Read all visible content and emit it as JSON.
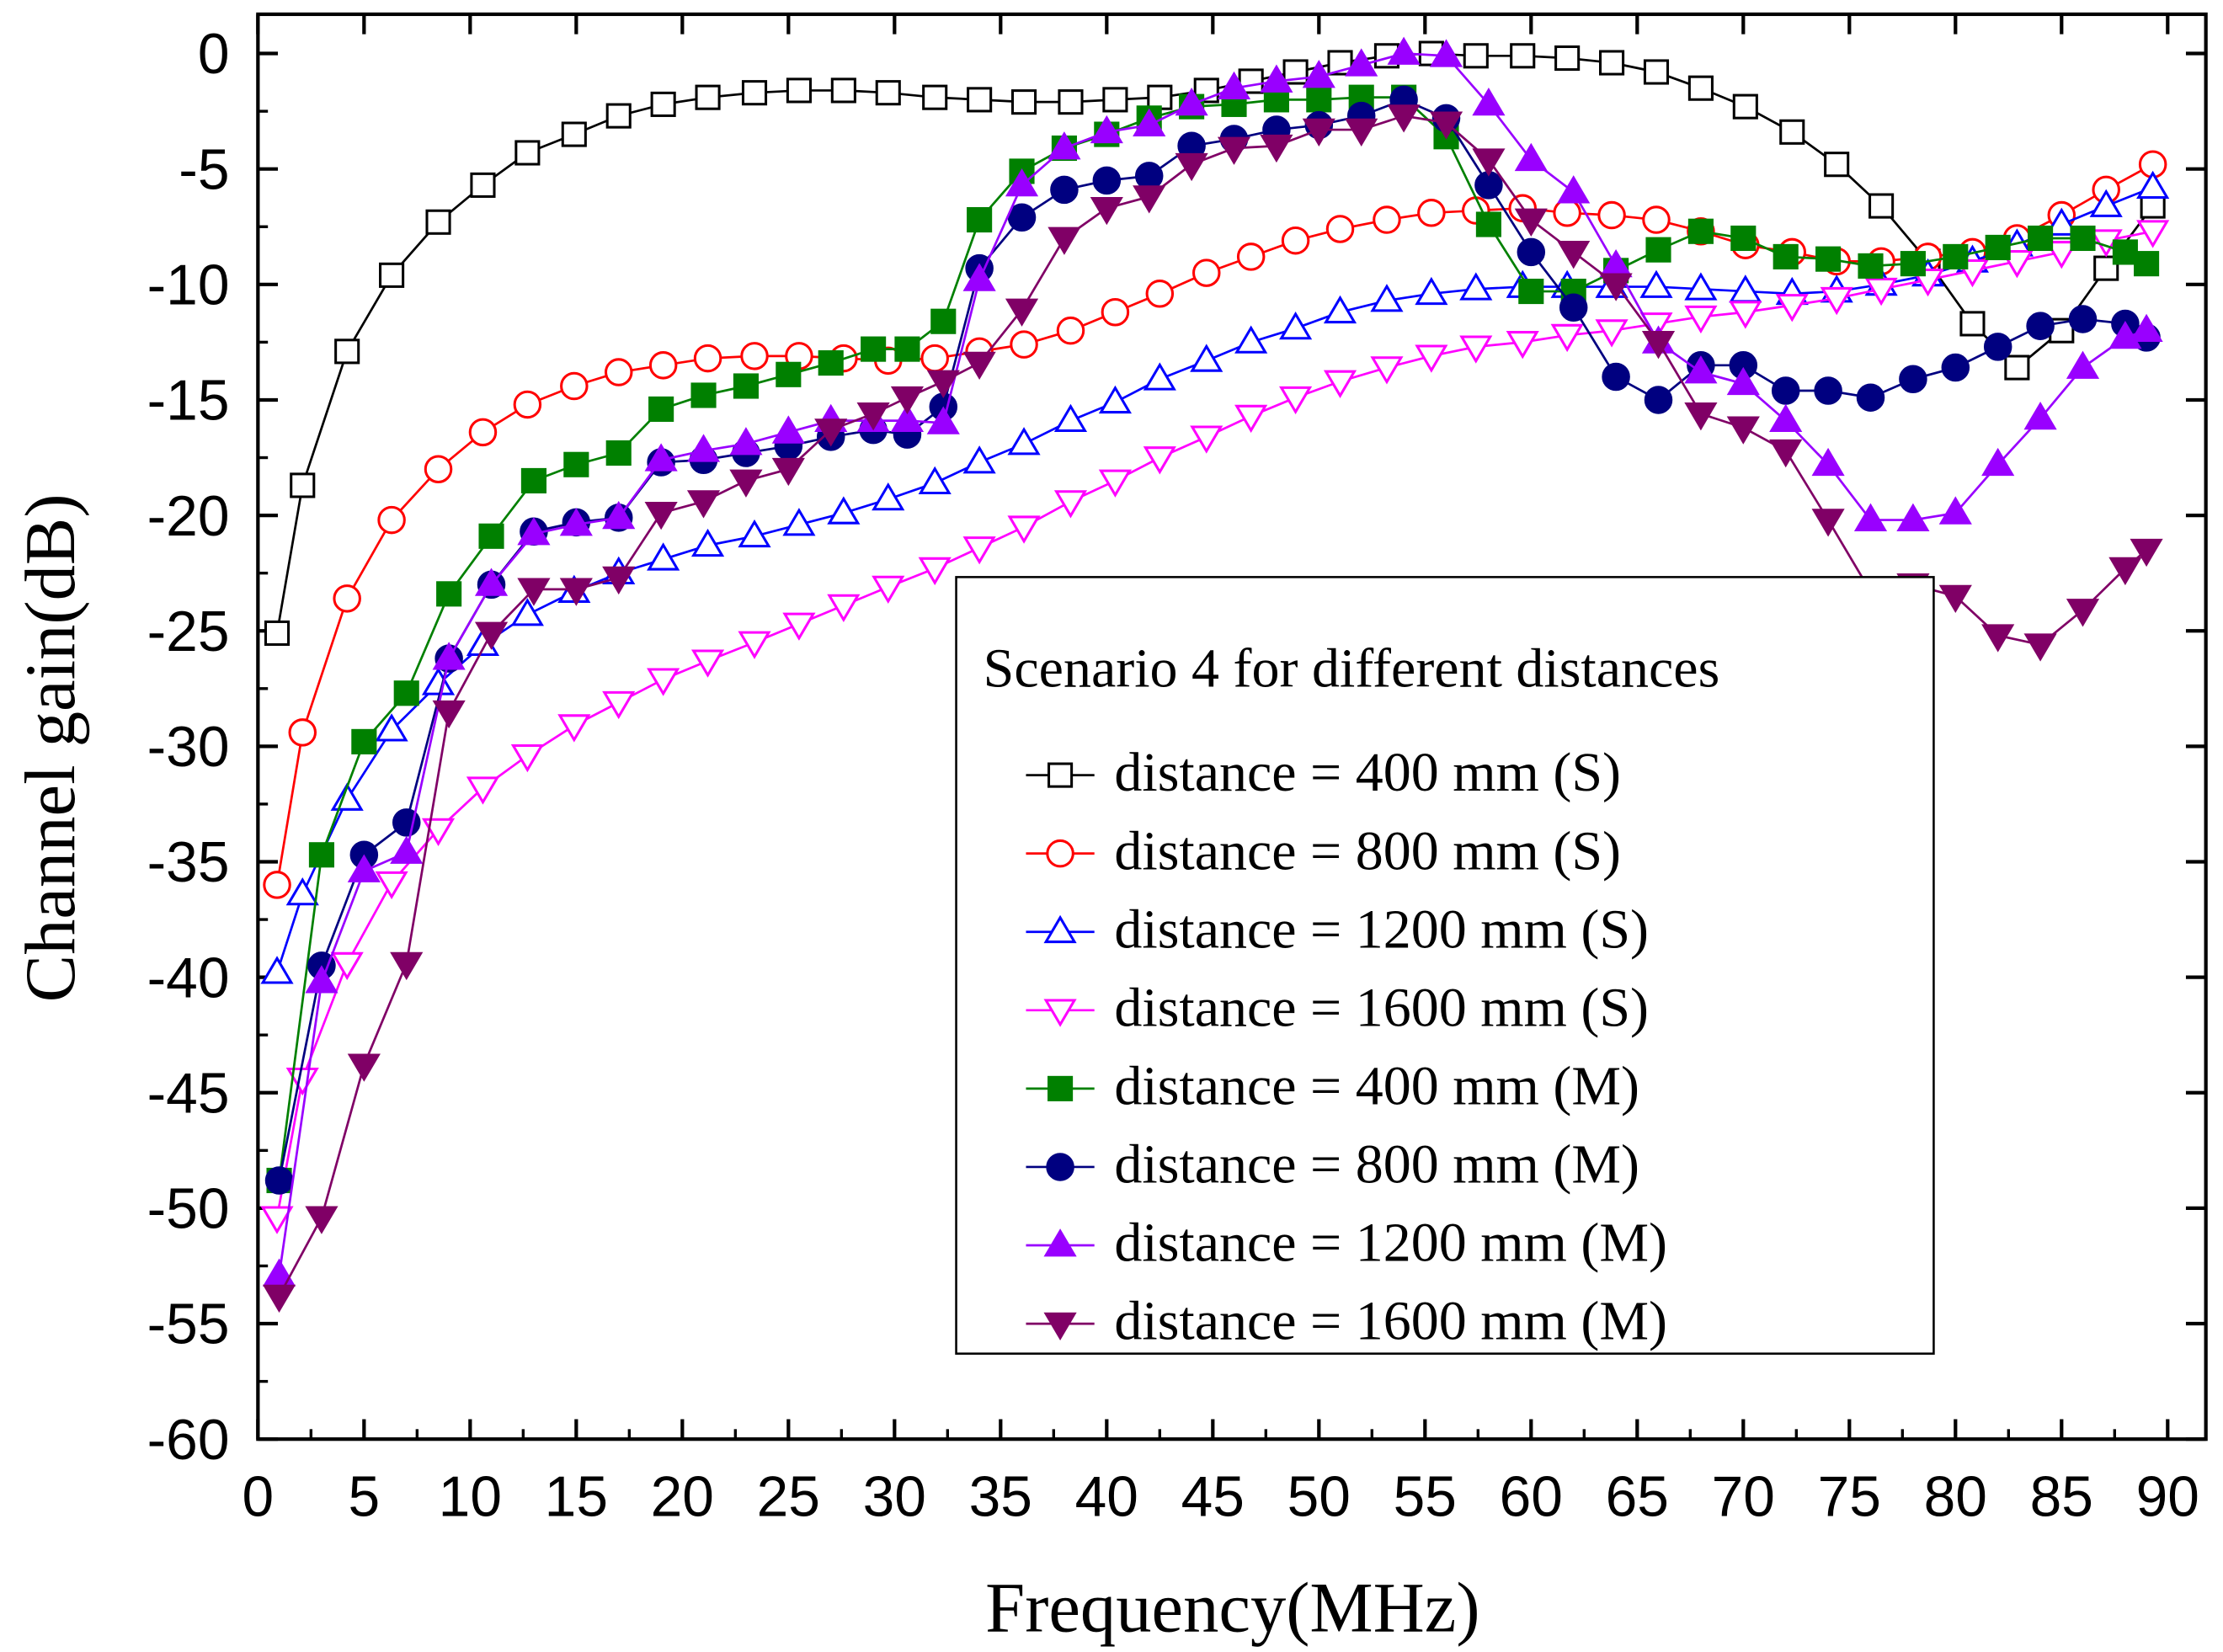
{
  "chart_data": {
    "type": "line",
    "title": "",
    "xlabel": "Frequency(MHz)",
    "ylabel": "Channel gain(dB)",
    "xlim": [
      0,
      91.8
    ],
    "ylim": [
      -60,
      1.7
    ],
    "x_ticks": [
      0,
      5,
      10,
      15,
      20,
      25,
      30,
      35,
      40,
      45,
      50,
      55,
      60,
      65,
      70,
      75,
      80,
      85,
      90
    ],
    "y_ticks": [
      0,
      -5,
      -10,
      -15,
      -20,
      -25,
      -30,
      -35,
      -40,
      -45,
      -50,
      -55,
      -60
    ],
    "grid": false,
    "legend": {
      "title": "Scenario 4 for different distances",
      "placement": "center-right"
    },
    "x_S": [
      0.9,
      2.1,
      4.2,
      6.3,
      8.5,
      10.6,
      12.7,
      14.9,
      17,
      19.1,
      21.2,
      23.4,
      25.5,
      27.6,
      29.7,
      31.9,
      34,
      36.1,
      38.3,
      40.4,
      42.5,
      44.7,
      46.8,
      48.9,
      51,
      53.2,
      55.3,
      57.4,
      59.6,
      61.7,
      63.8,
      65.9,
      68,
      70.1,
      72.3,
      74.4,
      76.5,
      78.7,
      80.8,
      82.9,
      85,
      87.1,
      89.3
    ],
    "x_M": [
      1,
      3,
      5,
      7,
      9,
      11,
      13,
      15,
      17,
      19,
      21,
      23,
      25,
      27,
      29,
      30.6,
      32.3,
      34,
      36,
      38,
      40,
      42,
      44,
      46,
      48,
      50,
      52,
      54,
      56,
      58,
      60,
      62,
      64,
      66,
      68,
      70,
      72,
      74,
      76,
      78,
      80,
      82,
      84,
      86,
      88,
      89
    ],
    "series": [
      {
        "name": "distance = 400 mm (S)",
        "xkey": "x_S",
        "color": "#000000",
        "marker": "square",
        "filled": false,
        "values": [
          -25.1,
          -18.7,
          -12.9,
          -9.6,
          -7.3,
          -5.7,
          -4.3,
          -3.5,
          -2.7,
          -2.2,
          -1.9,
          -1.7,
          -1.6,
          -1.6,
          -1.7,
          -1.9,
          -2,
          -2.1,
          -2.1,
          -2,
          -1.9,
          -1.6,
          -1.2,
          -0.8,
          -0.4,
          -0.1,
          0,
          -0.1,
          -0.1,
          -0.2,
          -0.4,
          -0.8,
          -1.5,
          -2.3,
          -3.4,
          -4.8,
          -6.6,
          -9,
          -11.7,
          -13.6,
          -12,
          -9.3,
          -6.6
        ]
      },
      {
        "name": "distance = 800 mm (S)",
        "xkey": "x_S",
        "color": "#ff0000",
        "marker": "circle",
        "filled": false,
        "values": [
          -36,
          -29.4,
          -23.6,
          -20.2,
          -18,
          -16.4,
          -15.2,
          -14.4,
          -13.8,
          -13.5,
          -13.2,
          -13.1,
          -13.1,
          -13.2,
          -13.3,
          -13.2,
          -12.9,
          -12.6,
          -12,
          -11.2,
          -10.4,
          -9.5,
          -8.8,
          -8.1,
          -7.6,
          -7.2,
          -6.9,
          -6.8,
          -6.7,
          -6.9,
          -7,
          -7.2,
          -7.7,
          -8.3,
          -8.6,
          -9,
          -9,
          -8.8,
          -8.6,
          -8,
          -7,
          -5.9,
          -4.8
        ]
      },
      {
        "name": "distance = 1200 mm (S)",
        "xkey": "x_S",
        "color": "#0000ff",
        "marker": "triangle-up",
        "filled": false,
        "values": [
          -39.8,
          -36.4,
          -32.3,
          -29.3,
          -27.3,
          -25.6,
          -24.3,
          -23.3,
          -22.5,
          -21.9,
          -21.3,
          -20.9,
          -20.4,
          -19.9,
          -19.3,
          -18.6,
          -17.7,
          -16.9,
          -15.9,
          -15.1,
          -14.1,
          -13.3,
          -12.5,
          -11.9,
          -11.2,
          -10.7,
          -10.4,
          -10.2,
          -10.1,
          -10.1,
          -10.1,
          -10.1,
          -10.2,
          -10.3,
          -10.4,
          -10.3,
          -10,
          -9.6,
          -9,
          -8.3,
          -7.4,
          -6.6,
          -5.8
        ]
      },
      {
        "name": "distance = 1600 mm (S)",
        "xkey": "x_S",
        "color": "#ff00ff",
        "marker": "triangle-down",
        "filled": false,
        "values": [
          -50.4,
          -44.4,
          -39.4,
          -35.9,
          -33.6,
          -31.8,
          -30.4,
          -29.1,
          -28.1,
          -27.1,
          -26.3,
          -25.5,
          -24.7,
          -23.9,
          -23.1,
          -22.3,
          -21.4,
          -20.5,
          -19.4,
          -18.5,
          -17.5,
          -16.6,
          -15.7,
          -14.9,
          -14.2,
          -13.6,
          -13.1,
          -12.7,
          -12.5,
          -12.2,
          -12,
          -11.7,
          -11.4,
          -11.2,
          -10.9,
          -10.6,
          -10.2,
          -9.8,
          -9.4,
          -9,
          -8.6,
          -8.1,
          -7.7
        ]
      },
      {
        "name": "distance = 400 mm (M)",
        "xkey": "x_M",
        "color": "#008000",
        "marker": "square",
        "filled": true,
        "values": [
          -48.8,
          -34.7,
          -29.8,
          -27.7,
          -23.4,
          -20.9,
          -18.5,
          -17.8,
          -17.3,
          -15.4,
          -14.8,
          -14.4,
          -13.9,
          -13.4,
          -12.8,
          -12.8,
          -11.6,
          -7.2,
          -5.1,
          -4.1,
          -3.5,
          -2.8,
          -2.3,
          -2.2,
          -2,
          -2,
          -1.9,
          -1.9,
          -3.6,
          -7.4,
          -10.3,
          -10.3,
          -9.4,
          -8.5,
          -7.7,
          -8,
          -8.8,
          -8.9,
          -9.2,
          -9.1,
          -8.8,
          -8.4,
          -8,
          -8,
          -8.6,
          -9.1
        ]
      },
      {
        "name": "distance = 800 mm (M)",
        "xkey": "x_M",
        "color": "#000080",
        "marker": "circle",
        "filled": true,
        "values": [
          -48.8,
          -39.5,
          -34.7,
          -33.3,
          -26.2,
          -23,
          -20.7,
          -20.3,
          -20.1,
          -17.7,
          -17.6,
          -17.3,
          -17,
          -16.6,
          -16.3,
          -16.5,
          -15.3,
          -9.3,
          -7.1,
          -5.9,
          -5.5,
          -5.3,
          -4,
          -3.7,
          -3.3,
          -3.1,
          -2.7,
          -2,
          -2.8,
          -5.7,
          -8.6,
          -11,
          -14,
          -15,
          -13.5,
          -13.5,
          -14.6,
          -14.6,
          -14.9,
          -14.1,
          -13.6,
          -12.7,
          -11.8,
          -11.5,
          -11.7,
          -12.3
        ]
      },
      {
        "name": "distance = 1200 mm (M)",
        "xkey": "x_M",
        "color": "#9900ff",
        "marker": "triangle-up",
        "filled": true,
        "values": [
          -52.9,
          -40.2,
          -35.4,
          -34.6,
          -26.2,
          -23,
          -20.8,
          -20.4,
          -20.1,
          -17.6,
          -17.2,
          -16.9,
          -16.4,
          -15.9,
          -15.9,
          -15.9,
          -16,
          -9.8,
          -5.7,
          -4.1,
          -3.4,
          -3.1,
          -2.2,
          -1.5,
          -1.2,
          -1,
          -0.5,
          0,
          -0.1,
          -2.2,
          -4.6,
          -6,
          -9.2,
          -12.5,
          -13.8,
          -14.3,
          -15.9,
          -17.8,
          -20.2,
          -20.2,
          -19.9,
          -17.8,
          -15.8,
          -13.6,
          -12.3,
          -12
        ]
      },
      {
        "name": "distance = 1600 mm (M)",
        "xkey": "x_M",
        "color": "#800066",
        "marker": "triangle-down",
        "filled": true,
        "values": [
          -53.8,
          -50.4,
          -43.8,
          -39.4,
          -28.5,
          -25.1,
          -23.2,
          -23.2,
          -22.7,
          -19.9,
          -19.4,
          -18.5,
          -18,
          -16.3,
          -15.6,
          -14.9,
          -14.2,
          -13.4,
          -11.1,
          -8,
          -6.7,
          -6.2,
          -4.8,
          -4.1,
          -4,
          -3.3,
          -3.3,
          -2.7,
          -3,
          -4.6,
          -7.2,
          -8.6,
          -10,
          -12.5,
          -15.6,
          -16.2,
          -17.2,
          -20.2,
          -23.3,
          -23,
          -23.5,
          -25.2,
          -25.6,
          -24.1,
          -22.3,
          -21.5
        ]
      }
    ]
  }
}
